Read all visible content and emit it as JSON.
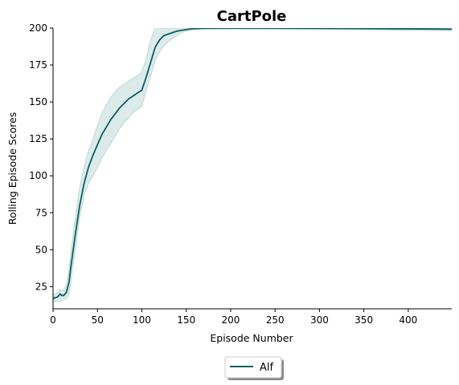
{
  "chart_data": {
    "type": "line",
    "title": "CartPole",
    "xlabel": "Episode Number",
    "ylabel": "Rolling Episode Scores",
    "xlim": [
      0,
      449
    ],
    "ylim": [
      10,
      200
    ],
    "xticks": [
      0,
      50,
      100,
      150,
      200,
      250,
      300,
      350,
      400
    ],
    "yticks": [
      25,
      50,
      75,
      100,
      125,
      150,
      175,
      200
    ],
    "grid": false,
    "legend_position": "bottom-center",
    "colors": {
      "line": "#0d5e5e",
      "band_fill": "#dcebea",
      "band_edge": "#bcd8d8"
    },
    "series": [
      {
        "name": "Alf",
        "x": [
          0,
          5,
          8,
          10,
          12,
          15,
          18,
          20,
          25,
          30,
          35,
          40,
          45,
          50,
          55,
          60,
          65,
          70,
          75,
          80,
          85,
          90,
          95,
          100,
          105,
          110,
          115,
          120,
          125,
          130,
          135,
          140,
          145,
          150,
          155,
          160,
          170,
          200,
          250,
          300,
          350,
          400,
          449
        ],
        "values": [
          17,
          18,
          20,
          19,
          19,
          21,
          28,
          38,
          60,
          80,
          95,
          106,
          114,
          121,
          128,
          133,
          138,
          142,
          146,
          149,
          152,
          154,
          156,
          158,
          167,
          177,
          187,
          192,
          195,
          196,
          197,
          198,
          198.5,
          199,
          199.4,
          199.6,
          199.8,
          199.9,
          199.9,
          199.8,
          199.7,
          199.5,
          199.3
        ],
        "lower": [
          15,
          15,
          15,
          16,
          16,
          17,
          20,
          28,
          50,
          72,
          87,
          95,
          100,
          106,
          112,
          117,
          122,
          127,
          132,
          136,
          139,
          143,
          145,
          147,
          158,
          168,
          178,
          184,
          188,
          191,
          193,
          195,
          197,
          198,
          198.8,
          199.2,
          199.5,
          199.6,
          199.4,
          199.1,
          198.9,
          198.6,
          198.3
        ],
        "upper": [
          19,
          21,
          23,
          22,
          23,
          26,
          36,
          48,
          72,
          92,
          106,
          117,
          125,
          134,
          142,
          148,
          153,
          157,
          160,
          162,
          164,
          166,
          168,
          170,
          180,
          192,
          200,
          200,
          200,
          200,
          200,
          200,
          200,
          200,
          200,
          200,
          200,
          200,
          200,
          200,
          200,
          200,
          200
        ]
      }
    ]
  }
}
